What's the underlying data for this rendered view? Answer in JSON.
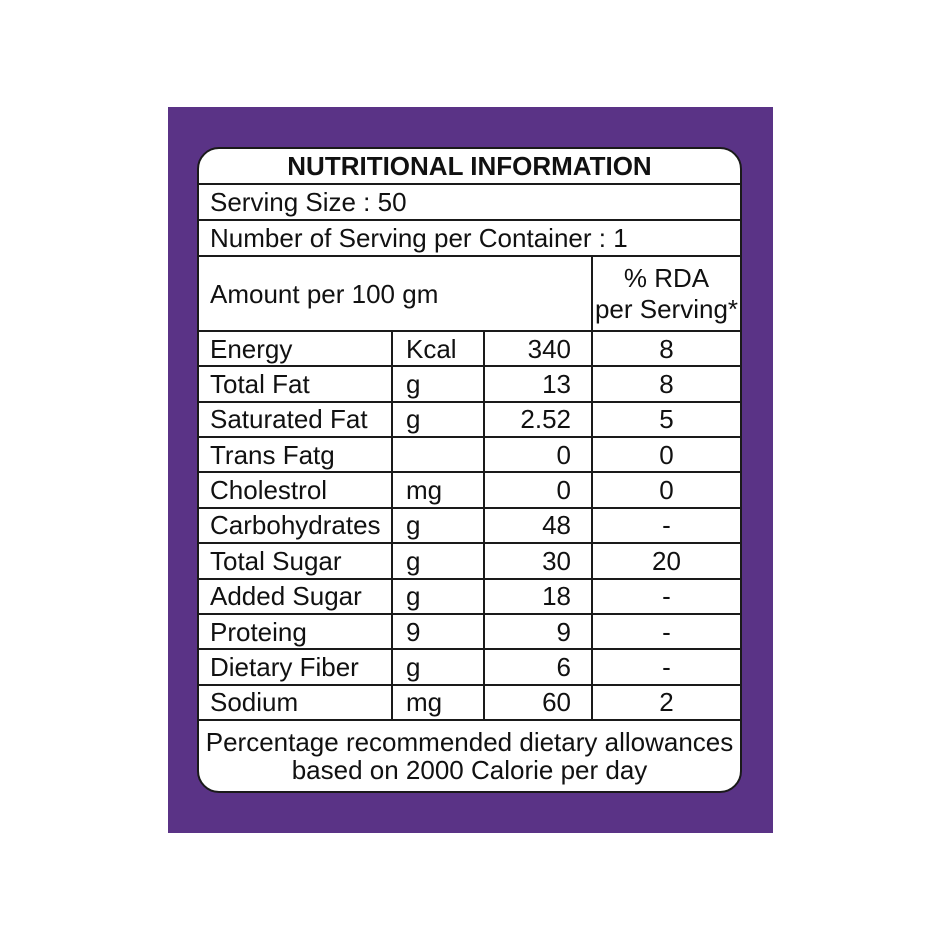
{
  "panel": {
    "background_color": "#5a3386",
    "border_color": "#1a1a1a"
  },
  "label": {
    "title": "NUTRITIONAL INFORMATION",
    "serving_size": "Serving Size : 50",
    "servings_per_container": "Number of Serving per Container : 1",
    "amount_header": "Amount per 100 gm",
    "rda_header_line1": "% RDA",
    "rda_header_line2": "per Serving*",
    "rows": [
      {
        "name": "Energy",
        "unit": "Kcal",
        "amount": "340",
        "rda": "8"
      },
      {
        "name": "Total Fat",
        "unit": "g",
        "amount": "13",
        "rda": "8"
      },
      {
        "name": "Saturated Fat",
        "unit": "g",
        "amount": "2.52",
        "rda": "5"
      },
      {
        "name": "Trans Fatg",
        "unit": "",
        "amount": "0",
        "rda": "0"
      },
      {
        "name": "Cholestrol",
        "unit": "mg",
        "amount": "0",
        "rda": "0"
      },
      {
        "name": "Carbohydrates",
        "unit": "g",
        "amount": "48",
        "rda": "-"
      },
      {
        "name": "Total Sugar",
        "unit": "g",
        "amount": "30",
        "rda": "20"
      },
      {
        "name": "Added Sugar",
        "unit": "g",
        "amount": "18",
        "rda": "-"
      },
      {
        "name": "Proteing",
        "unit": "9",
        "amount": "9",
        "rda": "-"
      },
      {
        "name": "Dietary Fiber",
        "unit": "g",
        "amount": "6",
        "rda": "-"
      },
      {
        "name": "Sodium",
        "unit": "mg",
        "amount": "60",
        "rda": "2"
      }
    ],
    "footnote_line1": "Percentage recommended dietary allowances",
    "footnote_line2": "based on 2000 Calorie per day"
  }
}
